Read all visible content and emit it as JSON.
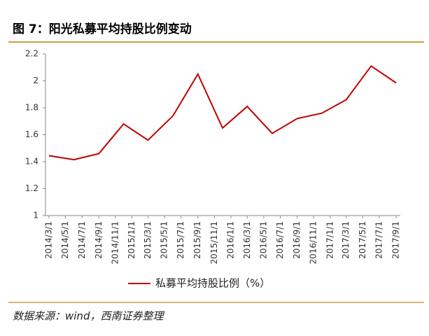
{
  "chart_data": {
    "type": "line",
    "title": "图 7：阳光私募平均持股比例变动",
    "source": "数据来源：wind，西南证券整理",
    "x": [
      "2014/3/1",
      "2014/6/1",
      "2014/9/1",
      "2014/12/1",
      "2015/3/1",
      "2015/6/1",
      "2015/9/1",
      "2015/12/1",
      "2016/3/1",
      "2016/6/1",
      "2016/9/1",
      "2016/12/1",
      "2017/3/1",
      "2017/6/1",
      "2017/9/1"
    ],
    "series": [
      {
        "name": "私募平均持股比例（%）",
        "color": "#c00000",
        "values": [
          1.445,
          1.415,
          1.46,
          1.68,
          1.56,
          1.74,
          2.05,
          1.65,
          1.81,
          1.61,
          1.72,
          1.76,
          1.86,
          2.11,
          1.985
        ]
      }
    ],
    "xlim": [
      "2014/3/1",
      "2017/9/1"
    ],
    "xticks": [
      "2014/3/1",
      "2014/5/1",
      "2014/7/1",
      "2014/9/1",
      "2014/11/1",
      "2015/1/1",
      "2015/3/1",
      "2015/5/1",
      "2015/7/1",
      "2015/9/1",
      "2015/11/1",
      "2016/1/1",
      "2016/3/1",
      "2016/5/1",
      "2016/7/1",
      "2016/9/1",
      "2016/11/1",
      "2017/1/1",
      "2017/3/1",
      "2017/5/1",
      "2017/7/1",
      "2017/9/1"
    ],
    "ylim": [
      1,
      2.2
    ],
    "yticks": [
      1,
      1.2,
      1.4,
      1.6,
      1.8,
      2,
      2.2
    ],
    "grid": false,
    "legend": "bottom"
  }
}
